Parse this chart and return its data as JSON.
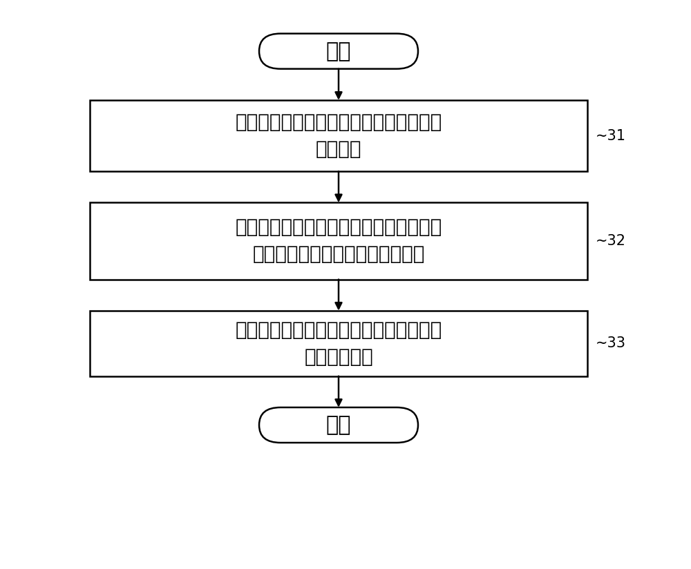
{
  "bg_color": "#ffffff",
  "border_color": "#000000",
  "text_color": "#000000",
  "arrow_color": "#000000",
  "start_end_text": [
    "开始",
    "结束"
  ],
  "box_texts": [
    "遵循精确时间协议与精确时间协议服务器\n交换消息",
    "依据与消息相关的时间信息，同步从属时\n钟与精确时间协议服务器的主时钟",
    "依据与消息相关的时间信息与大小信息，\n计算网络频宽"
  ],
  "labels": [
    "31",
    "32",
    "33"
  ],
  "font_size_oval": 22,
  "font_size_box": 20,
  "font_size_label": 15,
  "fig_width": 10.0,
  "fig_height": 8.24,
  "dpi": 100
}
